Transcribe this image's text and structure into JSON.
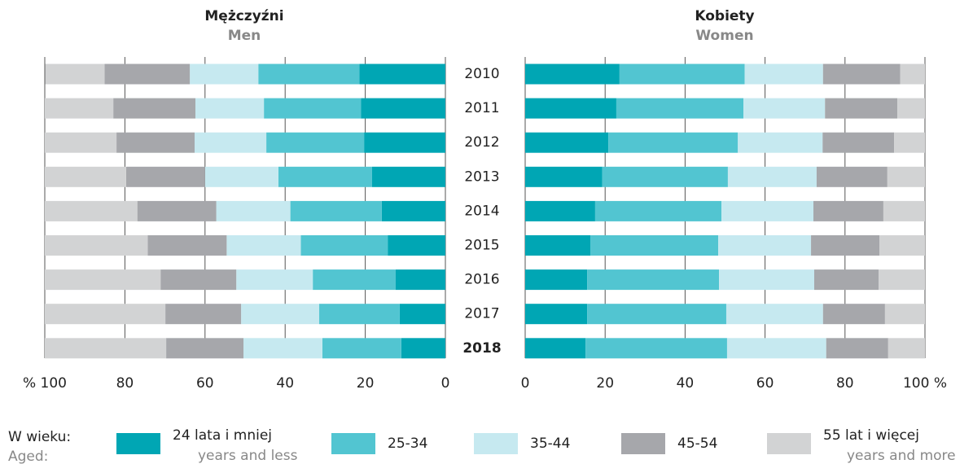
{
  "chart_data": [
    {
      "type": "bar",
      "title": "Mężczyźni",
      "subtitle": "Men",
      "xlim": [
        100,
        0
      ],
      "xticks": [
        {
          "value": 100,
          "label": "% 100"
        },
        80,
        60,
        40,
        20,
        0
      ],
      "series": [
        {
          "values": [
            21.5,
            21.1,
            20.3,
            18.3,
            15.9,
            14.4,
            12.4,
            11.4,
            11.0
          ]
        },
        {
          "values": [
            25.2,
            24.2,
            24.4,
            23.4,
            22.8,
            21.7,
            20.7,
            20.1,
            19.7
          ]
        },
        {
          "values": [
            17.1,
            17.1,
            17.9,
            18.3,
            18.5,
            18.5,
            19.1,
            19.5,
            19.7
          ]
        },
        {
          "values": [
            21.3,
            20.5,
            19.5,
            19.7,
            19.7,
            19.7,
            18.9,
            18.9,
            19.3
          ]
        },
        {
          "values": [
            14.8,
            17.1,
            17.9,
            20.3,
            23.1,
            25.7,
            28.9,
            30.1,
            30.3
          ]
        }
      ]
    },
    {
      "type": "bar",
      "title": "Kobiety",
      "subtitle": "Women",
      "xlim": [
        0,
        100
      ],
      "xticks": [
        0,
        20,
        40,
        60,
        80,
        {
          "value": 100,
          "label": "100 %"
        }
      ],
      "series": [
        {
          "values": [
            23.6,
            22.8,
            20.8,
            19.3,
            17.5,
            16.3,
            15.5,
            15.5,
            15.1
          ]
        },
        {
          "values": [
            31.3,
            31.8,
            32.4,
            31.4,
            31.6,
            32.0,
            33.0,
            34.8,
            35.4
          ]
        },
        {
          "values": [
            19.6,
            20.4,
            21.2,
            22.2,
            23.0,
            23.2,
            23.8,
            24.2,
            24.8
          ]
        },
        {
          "values": [
            19.3,
            18.1,
            17.9,
            17.7,
            17.5,
            17.1,
            16.1,
            15.5,
            15.5
          ]
        },
        {
          "values": [
            6.2,
            6.9,
            7.7,
            9.4,
            10.4,
            11.4,
            11.6,
            10.0,
            9.2
          ]
        }
      ]
    }
  ],
  "categories": [
    "2010",
    "2011",
    "2012",
    "2013",
    "2014",
    "2015",
    "2016",
    "2017",
    "2018"
  ],
  "bold_category": 8,
  "legend": {
    "title": "W wieku:",
    "title_en": "Aged:",
    "entries": [
      {
        "name": "24 lata i mniej",
        "name_en": "years and less",
        "color": "#00a6b4"
      },
      {
        "name": "25-34",
        "color": "#52c5d1"
      },
      {
        "name": "35-44",
        "color": "#c6e9f0"
      },
      {
        "name": "45-54",
        "color": "#a6a7ab"
      },
      {
        "name": "55 lat i więcej",
        "name_en": "years and more",
        "color": "#d2d3d4"
      }
    ]
  }
}
